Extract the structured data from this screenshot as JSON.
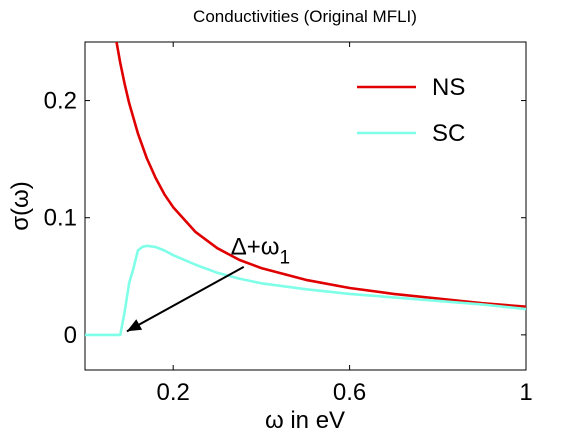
{
  "chart_data": {
    "type": "line",
    "title": "Conductivities (Original MFLI)",
    "xlabel": "ω in eV",
    "ylabel": "σ(ω)",
    "xlim": [
      0,
      1
    ],
    "ylim": [
      -0.03,
      0.25
    ],
    "xticks": [
      0.2,
      0.6,
      1
    ],
    "xtick_labels": [
      "0.2",
      "0.6",
      "1"
    ],
    "yticks": [
      0,
      0.1,
      0.2
    ],
    "ytick_labels": [
      "0",
      "0.1",
      "0.2"
    ],
    "grid": false,
    "legend_position": "top-right",
    "series": [
      {
        "name": "NS",
        "color": "#e00000",
        "x": [
          0.07,
          0.08,
          0.09,
          0.1,
          0.12,
          0.14,
          0.16,
          0.18,
          0.2,
          0.25,
          0.3,
          0.35,
          0.4,
          0.5,
          0.6,
          0.7,
          0.8,
          0.9,
          1.0
        ],
        "y": [
          0.253,
          0.232,
          0.214,
          0.198,
          0.172,
          0.151,
          0.134,
          0.12,
          0.109,
          0.088,
          0.074,
          0.064,
          0.057,
          0.047,
          0.04,
          0.035,
          0.031,
          0.027,
          0.024
        ]
      },
      {
        "name": "SC",
        "color": "#7fffe8",
        "x": [
          0,
          0.08,
          0.09,
          0.1,
          0.11,
          0.12,
          0.13,
          0.14,
          0.16,
          0.18,
          0.2,
          0.25,
          0.3,
          0.35,
          0.4,
          0.5,
          0.6,
          0.7,
          0.8,
          0.9,
          1.0
        ],
        "y": [
          0,
          0,
          0.02,
          0.044,
          0.057,
          0.072,
          0.075,
          0.076,
          0.075,
          0.072,
          0.068,
          0.06,
          0.053,
          0.048,
          0.044,
          0.039,
          0.035,
          0.032,
          0.029,
          0.026,
          0.022
        ]
      }
    ],
    "annotation": {
      "main": "Δ+ω",
      "sub": "1",
      "text_anchor": [
        0.36,
        0.065
      ],
      "arrow_from": [
        0.36,
        0.058
      ],
      "arrow_to": [
        0.095,
        0.003
      ]
    }
  }
}
